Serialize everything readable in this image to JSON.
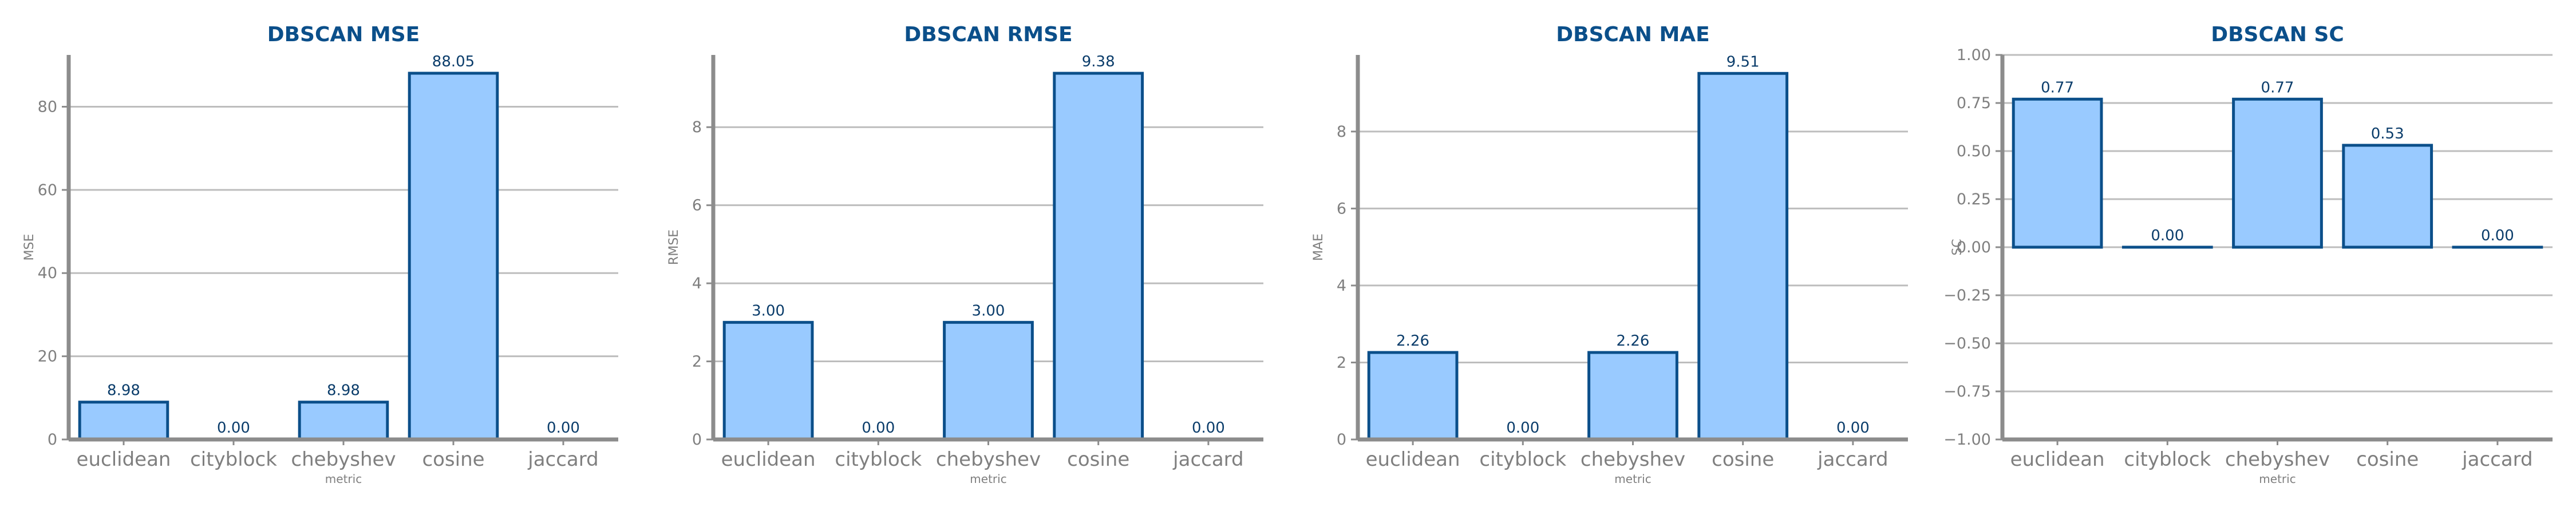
{
  "colors": {
    "title": "#0b4f8a",
    "bar_fill": "#99caff",
    "bar_stroke": "#0b4f8a",
    "value_label": "#0b3d6b",
    "axis": "#8c8c8c",
    "grid": "#bdbdbd",
    "tick_label": "#7f7f7f"
  },
  "chart_data": [
    {
      "type": "bar",
      "title": "DBSCAN MSE",
      "xlabel": "metric",
      "ylabel": "MSE",
      "categories": [
        "euclidean",
        "cityblock",
        "chebyshev",
        "cosine",
        "jaccard"
      ],
      "values": [
        8.98,
        0.0,
        8.98,
        88.05,
        0.0
      ],
      "value_labels": [
        "8.98",
        "0.00",
        "8.98",
        "88.05",
        "0.00"
      ],
      "yticks": [
        0,
        20,
        40,
        60,
        80
      ],
      "ytick_labels": [
        "0",
        "20",
        "40",
        "60",
        "80"
      ],
      "ylim": [
        0,
        92.45
      ],
      "grid": true
    },
    {
      "type": "bar",
      "title": "DBSCAN RMSE",
      "xlabel": "metric",
      "ylabel": "RMSE",
      "categories": [
        "euclidean",
        "cityblock",
        "chebyshev",
        "cosine",
        "jaccard"
      ],
      "values": [
        3.0,
        0.0,
        3.0,
        9.38,
        0.0
      ],
      "value_labels": [
        "3.00",
        "0.00",
        "3.00",
        "9.38",
        "0.00"
      ],
      "yticks": [
        0,
        2,
        4,
        6,
        8
      ],
      "ytick_labels": [
        "0",
        "2",
        "4",
        "6",
        "8"
      ],
      "ylim": [
        0,
        9.85
      ],
      "grid": true
    },
    {
      "type": "bar",
      "title": "DBSCAN MAE",
      "xlabel": "metric",
      "ylabel": "MAE",
      "categories": [
        "euclidean",
        "cityblock",
        "chebyshev",
        "cosine",
        "jaccard"
      ],
      "values": [
        2.26,
        0.0,
        2.26,
        9.51,
        0.0
      ],
      "value_labels": [
        "2.26",
        "0.00",
        "2.26",
        "9.51",
        "0.00"
      ],
      "yticks": [
        0,
        2,
        4,
        6,
        8
      ],
      "ytick_labels": [
        "0",
        "2",
        "4",
        "6",
        "8"
      ],
      "ylim": [
        0,
        9.99
      ],
      "grid": true
    },
    {
      "type": "bar",
      "title": "DBSCAN SC",
      "xlabel": "metric",
      "ylabel": "SC",
      "categories": [
        "euclidean",
        "cityblock",
        "chebyshev",
        "cosine",
        "jaccard"
      ],
      "values": [
        0.77,
        0.0,
        0.77,
        0.53,
        0.0
      ],
      "value_labels": [
        "0.77",
        "0.00",
        "0.77",
        "0.53",
        "0.00"
      ],
      "yticks": [
        -1.0,
        -0.75,
        -0.5,
        -0.25,
        0.0,
        0.25,
        0.5,
        0.75,
        1.0
      ],
      "ytick_labels": [
        "−1.00",
        "−0.75",
        "−0.50",
        "−0.25",
        "0.00",
        "0.25",
        "0.50",
        "0.75",
        "1.00"
      ],
      "ylim": [
        -1.0,
        1.0
      ],
      "grid": true
    }
  ]
}
